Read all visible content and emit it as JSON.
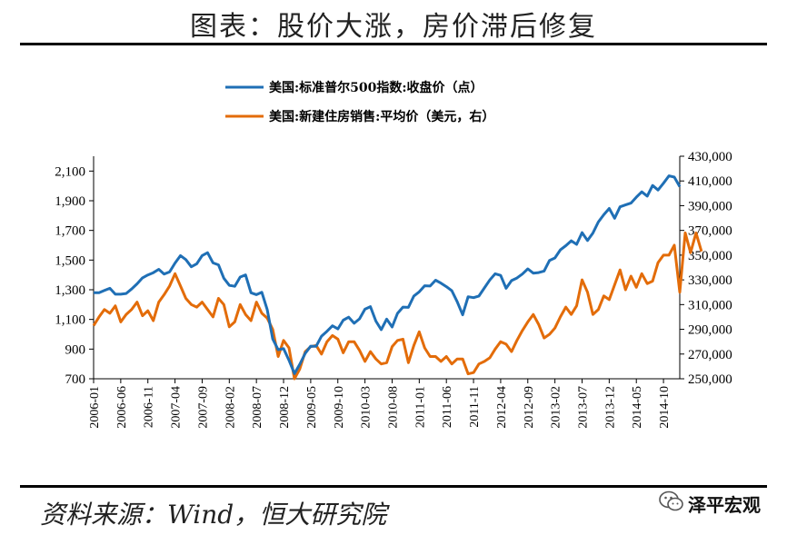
{
  "header": {
    "title": "图表：股价大涨，房价滞后修复"
  },
  "footer": {
    "source": "资料来源：Wind，恒大研究院",
    "brand": "泽平宏观"
  },
  "colors": {
    "series1": "#1f6fb5",
    "series2": "#e36c09",
    "rule": "#000000"
  },
  "icons": {
    "brand": "wechat-icon"
  },
  "chart_data": {
    "type": "line",
    "legend_placement": "top-center",
    "grid": false,
    "x_tick_labels": [
      "2006-01",
      "2006-06",
      "2006-11",
      "2007-04",
      "2007-09",
      "2008-02",
      "2008-07",
      "2008-12",
      "2009-05",
      "2009-10",
      "2010-03",
      "2010-08",
      "2011-01",
      "2011-06",
      "2011-11",
      "2012-04",
      "2012-09",
      "2013-02",
      "2013-07",
      "2013-12",
      "2014-05",
      "2014-10"
    ],
    "y_left": {
      "ylim": [
        700,
        2200
      ],
      "ticks": [
        700,
        900,
        1100,
        1300,
        1500,
        1700,
        1900,
        2100
      ],
      "tick_labels": [
        "700",
        "900",
        "1,100",
        "1,300",
        "1,500",
        "1,700",
        "1,900",
        "2,100"
      ]
    },
    "y_right": {
      "ylim": [
        250000,
        430000
      ],
      "ticks": [
        250000,
        270000,
        290000,
        310000,
        330000,
        350000,
        370000,
        390000,
        410000,
        430000
      ],
      "tick_labels": [
        "250,000",
        "270,000",
        "290,000",
        "310,000",
        "330,000",
        "350,000",
        "370,000",
        "390,000",
        "410,000",
        "430,000"
      ]
    },
    "series": [
      {
        "name": "美国:标准普尔500指数:收盘价（点）",
        "axis": "left",
        "values": [
          1280,
          1280,
          1295,
          1310,
          1270,
          1270,
          1275,
          1305,
          1340,
          1380,
          1400,
          1415,
          1438,
          1406,
          1420,
          1480,
          1530,
          1503,
          1455,
          1475,
          1530,
          1550,
          1481,
          1468,
          1378,
          1330,
          1323,
          1386,
          1400,
          1280,
          1267,
          1283,
          1165,
          968,
          896,
          903,
          825,
          735,
          798,
          872,
          920,
          919,
          987,
          1020,
          1057,
          1036,
          1095,
          1115,
          1074,
          1104,
          1169,
          1186,
          1089,
          1031,
          1102,
          1049,
          1141,
          1183,
          1181,
          1258,
          1286,
          1327,
          1325,
          1364,
          1345,
          1321,
          1293,
          1219,
          1131,
          1253,
          1247,
          1258,
          1312,
          1366,
          1408,
          1397,
          1310,
          1362,
          1379,
          1406,
          1441,
          1412,
          1416,
          1426,
          1498,
          1514,
          1569,
          1597,
          1630,
          1606,
          1685,
          1632,
          1682,
          1757,
          1806,
          1848,
          1782,
          1859,
          1872,
          1884,
          1924,
          1960,
          1931,
          2003,
          1972,
          2018,
          2068,
          2059,
          1995
        ]
      },
      {
        "name": "美国:新建住房销售:平均价（美元，右）",
        "axis": "right",
        "values": [
          293000,
          300000,
          306000,
          303000,
          309000,
          296000,
          302000,
          306000,
          312000,
          301000,
          305000,
          297000,
          312000,
          318000,
          325000,
          335000,
          325000,
          315000,
          310000,
          308000,
          312000,
          306000,
          300000,
          315000,
          310000,
          292000,
          296000,
          310000,
          302000,
          297000,
          312000,
          303000,
          299000,
          290000,
          268000,
          281000,
          275000,
          250000,
          258000,
          272000,
          276000,
          277000,
          270000,
          280000,
          285000,
          282000,
          271000,
          280000,
          280000,
          273000,
          264000,
          272000,
          266000,
          262000,
          263000,
          276000,
          281000,
          282000,
          263000,
          277000,
          288000,
          275000,
          268000,
          268000,
          264000,
          268000,
          262000,
          266000,
          266000,
          254000,
          255000,
          262000,
          264000,
          267000,
          274000,
          280000,
          278000,
          272000,
          281000,
          289000,
          296000,
          302000,
          294000,
          283000,
          286000,
          291000,
          300000,
          308000,
          302000,
          309000,
          330000,
          320000,
          302000,
          306000,
          317000,
          314000,
          326000,
          338000,
          322000,
          333000,
          324000,
          335000,
          327000,
          329000,
          344000,
          350000,
          350000,
          358000,
          320000,
          368000,
          352000,
          368000,
          353000
        ]
      }
    ]
  }
}
